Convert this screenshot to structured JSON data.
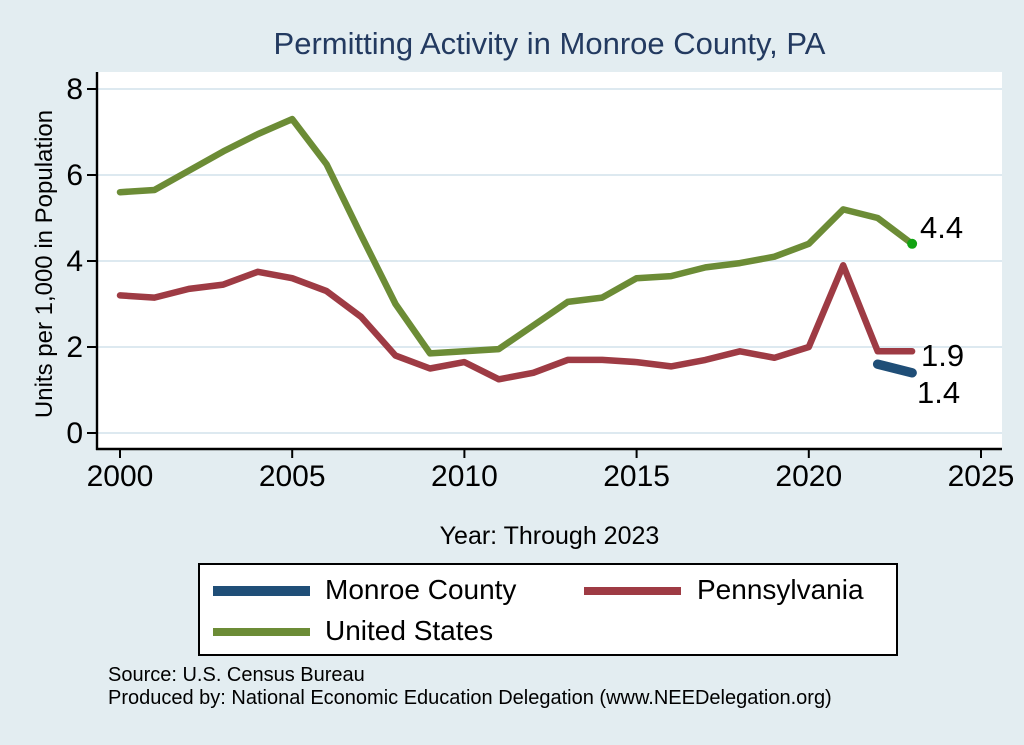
{
  "title": "Permitting Activity in Monroe County, PA",
  "axes": {
    "y_label": "Units per 1,000 in Population",
    "x_label": "Year: Through 2023",
    "y_ticks": [
      0,
      2,
      4,
      6,
      8
    ],
    "x_ticks": [
      2000,
      2005,
      2010,
      2015,
      2020,
      2025
    ],
    "y_range": [
      0,
      8
    ],
    "x_range": [
      2000,
      2025
    ]
  },
  "chart_data": {
    "type": "line",
    "title": "Permitting Activity in Monroe County, PA",
    "xlabel": "Year: Through 2023",
    "ylabel": "Units per 1,000 in Population",
    "xlim": [
      2000,
      2025
    ],
    "ylim": [
      0,
      8
    ],
    "grid": "horizontal",
    "legend_position": "bottom",
    "x": [
      2000,
      2001,
      2002,
      2003,
      2004,
      2005,
      2006,
      2007,
      2008,
      2009,
      2010,
      2011,
      2012,
      2013,
      2014,
      2015,
      2016,
      2017,
      2018,
      2019,
      2020,
      2021,
      2022,
      2023
    ],
    "series": [
      {
        "name": "Monroe County",
        "color": "#1f4e77",
        "end_label": "1.4",
        "values": [
          null,
          null,
          null,
          null,
          null,
          null,
          null,
          null,
          null,
          null,
          null,
          null,
          null,
          null,
          null,
          null,
          null,
          null,
          null,
          null,
          null,
          null,
          1.6,
          1.4
        ]
      },
      {
        "name": "Pennsylvania",
        "color": "#9e3b44",
        "end_label": "1.9",
        "values": [
          3.2,
          3.15,
          3.35,
          3.45,
          3.75,
          3.6,
          3.3,
          2.7,
          1.8,
          1.5,
          1.65,
          1.25,
          1.4,
          1.7,
          1.7,
          1.65,
          1.55,
          1.7,
          1.9,
          1.75,
          2.0,
          3.9,
          1.9,
          1.9
        ]
      },
      {
        "name": "United States",
        "color": "#6c8c36",
        "end_label": "4.4",
        "end_marker_color": "#12a312",
        "values": [
          5.6,
          5.65,
          6.1,
          6.55,
          6.95,
          7.3,
          6.25,
          4.6,
          3.0,
          1.85,
          1.9,
          1.95,
          2.5,
          3.05,
          3.15,
          3.6,
          3.65,
          3.85,
          3.95,
          4.1,
          4.4,
          5.2,
          5.0,
          4.4
        ]
      }
    ]
  },
  "legend": {
    "items": [
      {
        "label": "Monroe County",
        "color": "#1f4e77"
      },
      {
        "label": "Pennsylvania",
        "color": "#9e3b44"
      },
      {
        "label": "United States",
        "color": "#6c8c36"
      }
    ]
  },
  "footer": {
    "source": "Source: U.S. Census Bureau",
    "produced_by": "Produced by: National Economic Education Delegation (www.NEEDelegation.org)"
  },
  "colors": {
    "background": "#e3edf1",
    "plot_background": "#ffffff",
    "grid": "#dde9f0",
    "axis": "#000000",
    "title": "#233a60",
    "end_marker": "#12a312"
  }
}
